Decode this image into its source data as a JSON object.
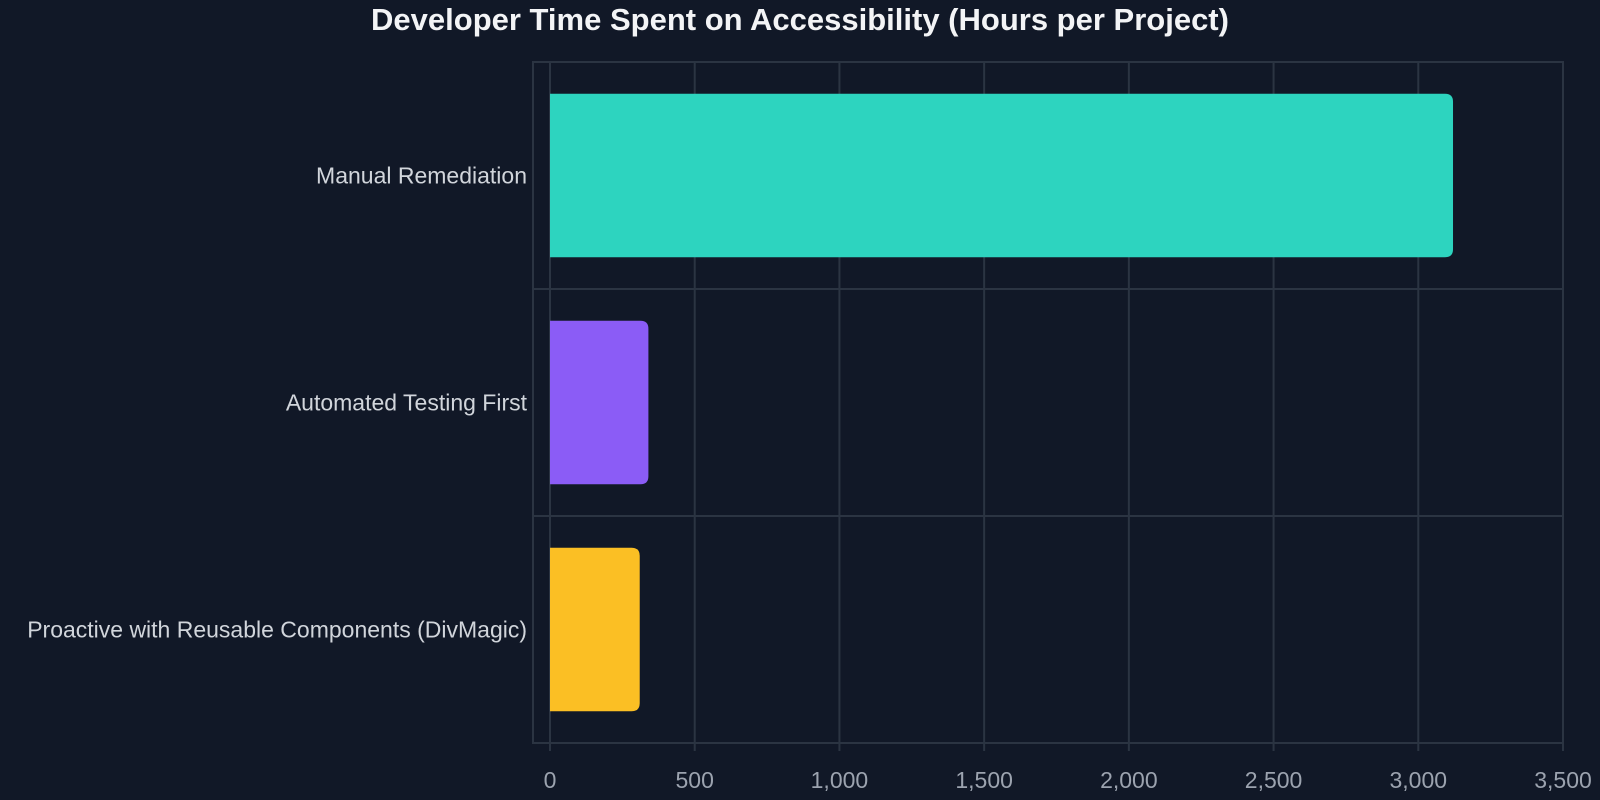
{
  "chart_data": {
    "type": "bar",
    "orientation": "horizontal",
    "title": "Developer Time Spent on Accessibility (Hours per Project)",
    "xlabel": "",
    "ylabel": "",
    "categories": [
      "Manual Remediation",
      "Automated Testing First",
      "Proactive with Reusable Components (DivMagic)"
    ],
    "values": [
      3120,
      340,
      310
    ],
    "colors": [
      "#2dd4bf",
      "#8b5cf6",
      "#fbbf24"
    ],
    "xlim": [
      0,
      3500
    ],
    "xticks": [
      0,
      500,
      1000,
      1500,
      2000,
      2500,
      3000,
      3500
    ],
    "xtick_labels": [
      "0",
      "500",
      "1,000",
      "1,500",
      "2,000",
      "2,500",
      "3,000",
      "3,500"
    ],
    "grid": true,
    "legend": "none"
  }
}
